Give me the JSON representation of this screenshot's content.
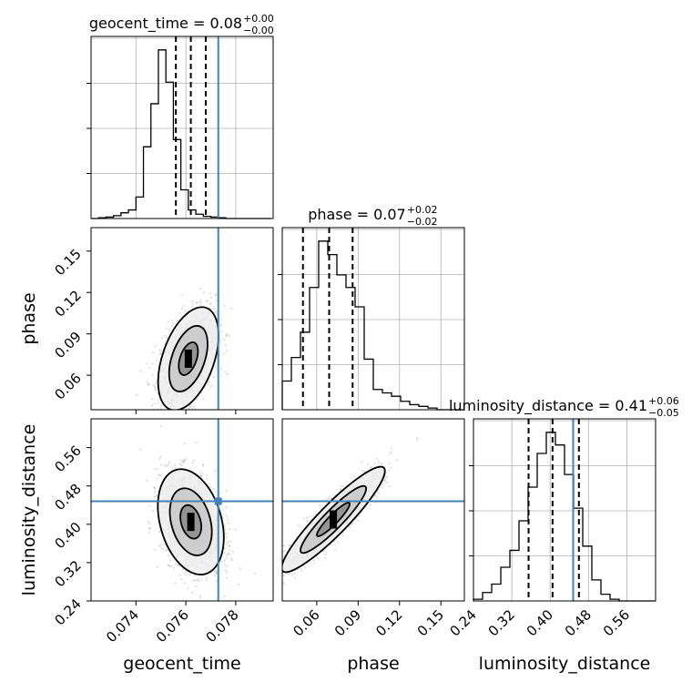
{
  "chart_data": {
    "type": "corner",
    "parameters": [
      {
        "name": "geocent_time",
        "axis_label": "geocent_time",
        "title_prefix": "geocent_time = 0.08",
        "title_plus": "+0.00",
        "title_minus": "−0.00",
        "range": [
          0.0722,
          0.0795
        ],
        "ticks": [
          0.074,
          0.076,
          0.078
        ],
        "tick_labels": [
          "0.074",
          "0.076",
          "0.078"
        ],
        "truth": 0.0773,
        "quantiles": [
          0.0756,
          0.0762,
          0.0768
        ],
        "hist_edges_start": 0.0722,
        "hist_bin_width": 0.0003,
        "hist_counts": [
          0,
          1,
          2,
          4,
          8,
          12,
          30,
          100,
          160,
          235,
          190,
          110,
          40,
          12,
          6,
          3,
          2,
          1,
          0,
          0,
          0,
          0,
          0,
          0
        ]
      },
      {
        "name": "phase",
        "axis_label": "phase",
        "title_prefix": "phase = 0.07",
        "title_plus": "+0.02",
        "title_minus": "−0.02",
        "range": [
          0.035,
          0.167
        ],
        "ticks": [
          0.06,
          0.09,
          0.12,
          0.15
        ],
        "tick_labels": [
          "0.06",
          "0.09",
          "0.12",
          "0.15"
        ],
        "truth": null,
        "quantiles": [
          0.05,
          0.069,
          0.086
        ],
        "hist_edges_start": 0.035,
        "hist_bin_width": 0.0066,
        "hist_counts": [
          34,
          62,
          92,
          145,
          200,
          184,
          160,
          145,
          122,
          60,
          24,
          20,
          16,
          10,
          6,
          4,
          2,
          0,
          0,
          0
        ]
      },
      {
        "name": "luminosity_distance",
        "axis_label": "luminosity_distance",
        "title_prefix": "luminosity_distance = 0.41",
        "title_plus": "+0.06",
        "title_minus": "−0.05",
        "range": [
          0.24,
          0.62
        ],
        "ticks": [
          0.24,
          0.32,
          0.4,
          0.48,
          0.56
        ],
        "tick_labels": [
          "0.24",
          "0.32",
          "0.40",
          "0.48",
          "0.56"
        ],
        "truth": 0.448,
        "quantiles": [
          0.355,
          0.405,
          0.46
        ],
        "hist_edges_start": 0.24,
        "hist_bin_width": 0.019,
        "hist_counts": [
          2,
          10,
          20,
          40,
          60,
          95,
          135,
          175,
          200,
          185,
          150,
          110,
          65,
          25,
          8,
          2,
          0,
          0,
          0,
          0
        ]
      }
    ],
    "pairs": [
      {
        "x": "geocent_time",
        "y": "phase",
        "mean": [
          0.0761,
          0.072
        ],
        "std": [
          0.00055,
          0.017
        ],
        "corr": 0.45
      },
      {
        "x": "geocent_time",
        "y": "luminosity_distance",
        "mean": [
          0.0762,
          0.405
        ],
        "std": [
          0.0006,
          0.05
        ],
        "corr": -0.3
      },
      {
        "x": "phase",
        "y": "luminosity_distance",
        "mean": [
          0.072,
          0.41
        ],
        "std": [
          0.017,
          0.05
        ],
        "corr": 0.92
      }
    ],
    "grid": true,
    "colors": {
      "truth": "#4682b4",
      "hist": "#000000",
      "scatter": "#808080",
      "contour": "#000000"
    }
  }
}
